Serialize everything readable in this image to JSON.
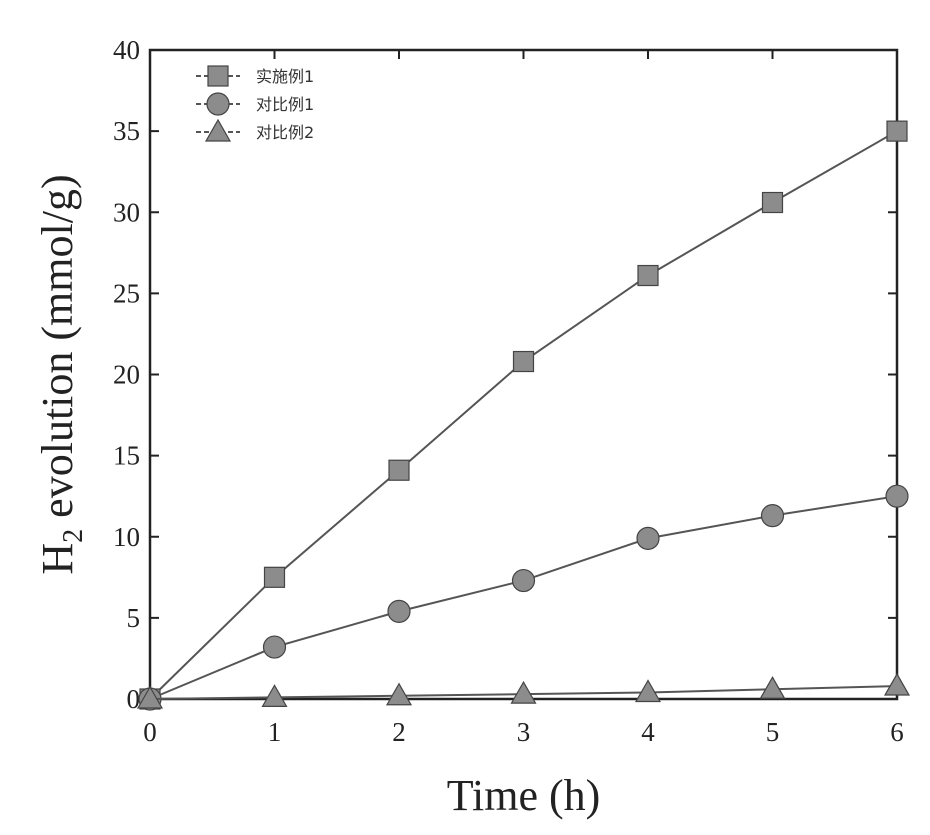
{
  "chart_data": {
    "type": "line",
    "title": "",
    "xlabel": "Time (h)",
    "ylabel_main": "H",
    "ylabel_sub": "2",
    "ylabel_rest": " evolution (mmol/g)",
    "xlim": [
      0,
      6
    ],
    "ylim": [
      0,
      40
    ],
    "xticks": [
      0,
      1,
      2,
      3,
      4,
      5,
      6
    ],
    "yticks": [
      0,
      5,
      10,
      15,
      20,
      25,
      30,
      35,
      40
    ],
    "grid": false,
    "legend_position": "top-left",
    "x": [
      0,
      1,
      2,
      3,
      4,
      5,
      6
    ],
    "series": [
      {
        "name": "实施例1",
        "marker": "square",
        "values": [
          0,
          7.5,
          14.1,
          20.8,
          26.1,
          30.6,
          35.0
        ]
      },
      {
        "name": "对比例1",
        "marker": "circle",
        "values": [
          0,
          3.2,
          5.4,
          7.3,
          9.9,
          11.3,
          12.5
        ]
      },
      {
        "name": "对比例2",
        "marker": "triangle",
        "values": [
          0,
          0.1,
          0.2,
          0.3,
          0.4,
          0.6,
          0.8
        ]
      }
    ],
    "colors": {
      "line": "#555555",
      "marker_fill": "#8c8c8c",
      "marker_stroke": "#444444",
      "axis": "#222222"
    }
  }
}
